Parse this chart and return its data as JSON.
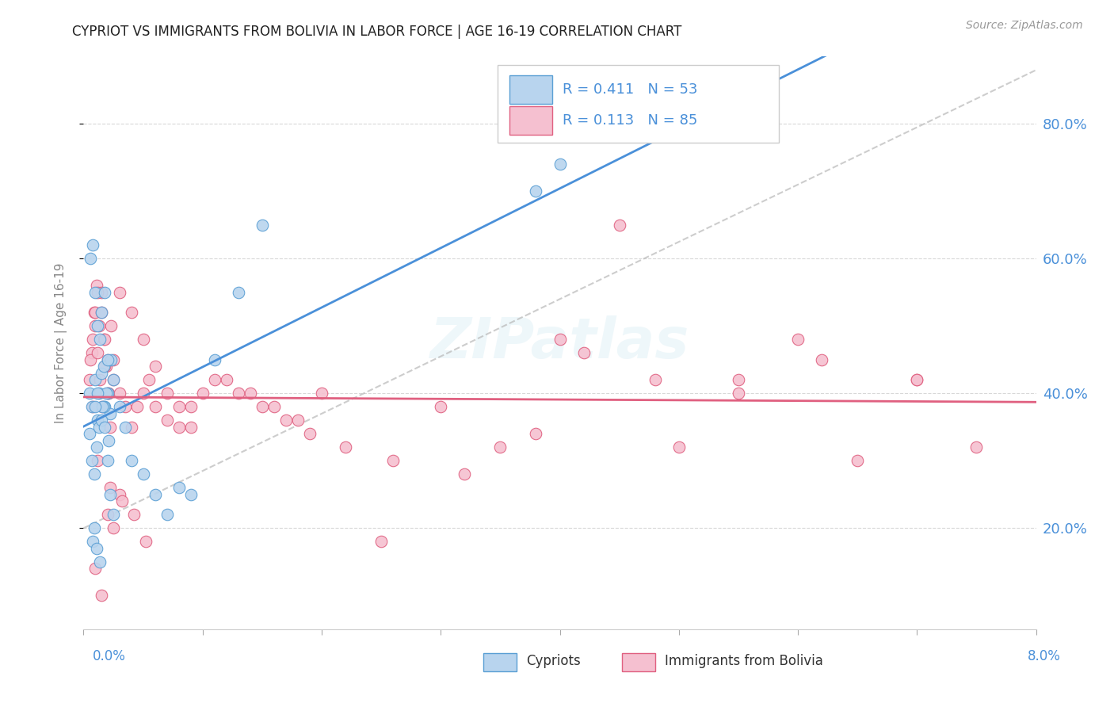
{
  "title": "CYPRIOT VS IMMIGRANTS FROM BOLIVIA IN LABOR FORCE | AGE 16-19 CORRELATION CHART",
  "source_text": "Source: ZipAtlas.com",
  "ylabel": "In Labor Force | Age 16-19",
  "xlim": [
    0.0,
    8.0
  ],
  "ylim": [
    5.0,
    90.0
  ],
  "yticks": [
    20,
    40,
    60,
    80
  ],
  "xtick_positions": [
    0,
    1,
    2,
    3,
    4,
    5,
    6,
    7,
    8
  ],
  "color_cypriot_face": "#b8d4ee",
  "color_cypriot_edge": "#5a9fd4",
  "color_bolivia_face": "#f5c0d0",
  "color_bolivia_edge": "#e06080",
  "color_line_cypriot": "#4a90d9",
  "color_line_bolivia": "#e06080",
  "color_axis_label": "#4a90d9",
  "color_ref_line": "#b8b8b8",
  "legend_r1": "0.411",
  "legend_n1": "53",
  "legend_r2": "0.113",
  "legend_n2": "85",
  "legend_label1": "Cypriots",
  "legend_label2": "Immigrants from Bolivia",
  "watermark": "ZIPatlas",
  "cypriot_x": [
    0.05,
    0.07,
    0.1,
    0.12,
    0.13,
    0.15,
    0.17,
    0.18,
    0.2,
    0.22,
    0.05,
    0.07,
    0.09,
    0.11,
    0.13,
    0.15,
    0.17,
    0.19,
    0.21,
    0.23,
    0.06,
    0.08,
    0.1,
    0.12,
    0.14,
    0.16,
    0.18,
    0.2,
    0.22,
    0.25,
    0.1,
    0.12,
    0.15,
    0.18,
    0.2,
    0.25,
    0.3,
    0.35,
    0.4,
    0.5,
    0.6,
    0.7,
    0.8,
    0.9,
    1.1,
    1.3,
    1.5,
    3.8,
    4.0,
    0.08,
    0.09,
    0.11,
    0.14
  ],
  "cypriot_y": [
    40,
    38,
    42,
    36,
    40,
    43,
    44,
    38,
    40,
    37,
    34,
    30,
    28,
    32,
    35,
    36,
    38,
    40,
    33,
    45,
    60,
    62,
    55,
    50,
    48,
    38,
    35,
    30,
    25,
    22,
    38,
    40,
    52,
    55,
    45,
    42,
    38,
    35,
    30,
    28,
    25,
    22,
    26,
    25,
    45,
    55,
    65,
    70,
    74,
    18,
    20,
    17,
    15
  ],
  "bolivia_x": [
    0.05,
    0.07,
    0.09,
    0.11,
    0.13,
    0.15,
    0.17,
    0.19,
    0.21,
    0.23,
    0.06,
    0.08,
    0.1,
    0.12,
    0.14,
    0.16,
    0.18,
    0.2,
    0.22,
    0.25,
    0.08,
    0.1,
    0.12,
    0.15,
    0.18,
    0.2,
    0.25,
    0.3,
    0.35,
    0.4,
    0.45,
    0.5,
    0.55,
    0.6,
    0.7,
    0.8,
    0.9,
    1.0,
    1.2,
    1.4,
    1.6,
    1.8,
    2.0,
    2.5,
    3.0,
    3.5,
    4.0,
    4.5,
    5.0,
    5.5,
    6.0,
    6.5,
    7.0,
    7.5,
    0.3,
    0.4,
    0.5,
    0.6,
    0.7,
    0.8,
    0.9,
    1.1,
    1.3,
    1.5,
    1.7,
    1.9,
    2.2,
    2.6,
    3.2,
    3.8,
    4.2,
    4.8,
    5.5,
    6.2,
    7.0,
    0.1,
    0.15,
    0.2,
    0.25,
    0.3,
    0.12,
    0.22,
    0.32,
    0.42,
    0.52
  ],
  "bolivia_y": [
    42,
    46,
    52,
    56,
    50,
    55,
    48,
    44,
    40,
    50,
    45,
    48,
    52,
    46,
    42,
    38,
    44,
    40,
    35,
    45,
    38,
    50,
    55,
    52,
    48,
    45,
    42,
    40,
    38,
    35,
    38,
    40,
    42,
    38,
    36,
    35,
    38,
    40,
    42,
    40,
    38,
    36,
    40,
    18,
    38,
    32,
    48,
    65,
    32,
    42,
    48,
    30,
    42,
    32,
    55,
    52,
    48,
    44,
    40,
    38,
    35,
    42,
    40,
    38,
    36,
    34,
    32,
    30,
    28,
    34,
    46,
    42,
    40,
    45,
    42,
    14,
    10,
    22,
    20,
    25,
    30,
    26,
    24,
    22,
    18
  ]
}
